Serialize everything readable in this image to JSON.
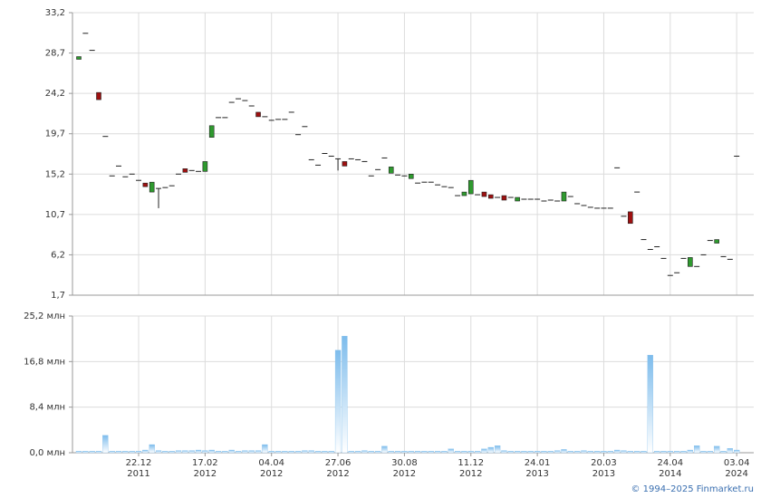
{
  "chart_data": [
    {
      "type": "candlestick",
      "categories": [
        null,
        null,
        null,
        null,
        null,
        null,
        null,
        null,
        null,
        "22.12\n2011",
        null,
        null,
        null,
        null,
        null,
        null,
        null,
        null,
        null,
        "17.02\n2012",
        null,
        null,
        null,
        null,
        null,
        null,
        null,
        null,
        null,
        "04.04\n2012",
        null,
        null,
        null,
        null,
        null,
        null,
        null,
        null,
        null,
        "27.06\n2012",
        null,
        null,
        null,
        null,
        null,
        null,
        null,
        null,
        null,
        "30.08\n2012",
        null,
        null,
        null,
        null,
        null,
        null,
        null,
        null,
        null,
        "11.12\n2012",
        null,
        null,
        null,
        null,
        null,
        null,
        null,
        null,
        null,
        "24.01\n2013",
        null,
        null,
        null,
        null,
        null,
        null,
        null,
        null,
        null,
        "20.03\n2013",
        null,
        null,
        null,
        null,
        null,
        null,
        null,
        null,
        null,
        "24.04\n2014",
        null,
        null,
        null,
        null,
        null,
        null,
        null,
        null,
        null,
        "03.04\n2024"
      ],
      "open": [
        28.0,
        30.9,
        29.0,
        24.3,
        19.4,
        15.0,
        16.1,
        14.9,
        15.2,
        14.5,
        14.2,
        13.2,
        13.6,
        13.7,
        13.9,
        15.2,
        15.8,
        15.6,
        15.5,
        15.5,
        19.3,
        21.5,
        21.5,
        23.2,
        23.6,
        23.4,
        22.8,
        22.1,
        21.6,
        21.2,
        21.3,
        21.3,
        22.1,
        19.6,
        20.5,
        16.8,
        16.2,
        17.5,
        17.2,
        16.9,
        16.6,
        16.9,
        16.8,
        16.6,
        15.0,
        15.7,
        17.0,
        15.3,
        15.1,
        15.0,
        14.7,
        14.2,
        14.3,
        14.3,
        14.0,
        13.8,
        13.7,
        12.8,
        12.8,
        13.0,
        12.9,
        13.2,
        12.9,
        12.6,
        12.8,
        12.6,
        12.2,
        12.4,
        12.4,
        12.4,
        12.2,
        12.3,
        12.2,
        12.2,
        12.7,
        11.9,
        11.7,
        11.5,
        11.4,
        11.4,
        11.4,
        15.9,
        10.5,
        11.0,
        13.2,
        7.9,
        6.8,
        7.1,
        5.8,
        3.9,
        4.2,
        5.8,
        4.9,
        4.9,
        6.2,
        7.8,
        7.5,
        6.0,
        5.7,
        17.2
      ],
      "high": [
        28.3,
        30.9,
        29.0,
        24.3,
        19.4,
        15.0,
        16.1,
        14.9,
        15.2,
        14.5,
        14.2,
        14.3,
        13.6,
        13.7,
        13.9,
        15.2,
        15.8,
        15.6,
        15.5,
        16.6,
        20.6,
        21.5,
        21.5,
        23.2,
        23.6,
        23.4,
        22.8,
        22.1,
        21.6,
        21.2,
        21.3,
        21.3,
        22.1,
        19.6,
        20.5,
        16.8,
        16.2,
        17.5,
        17.2,
        16.9,
        16.6,
        16.9,
        16.8,
        16.6,
        15.0,
        15.7,
        17.0,
        16.0,
        15.1,
        15.0,
        15.2,
        14.2,
        14.3,
        14.3,
        14.0,
        13.8,
        13.7,
        12.8,
        13.2,
        14.5,
        12.9,
        13.2,
        12.9,
        12.6,
        12.8,
        12.6,
        12.6,
        12.4,
        12.4,
        12.4,
        12.2,
        12.3,
        12.2,
        13.2,
        12.7,
        11.9,
        11.7,
        11.5,
        11.4,
        11.4,
        11.4,
        15.9,
        10.5,
        11.0,
        13.2,
        7.9,
        6.8,
        7.1,
        5.8,
        3.9,
        4.2,
        5.8,
        5.9,
        4.9,
        6.2,
        7.8,
        7.9,
        6.0,
        5.7,
        17.2
      ],
      "low": [
        28.0,
        30.9,
        29.0,
        23.5,
        19.4,
        15.0,
        16.1,
        14.9,
        15.2,
        14.5,
        13.8,
        13.2,
        11.4,
        13.7,
        13.9,
        15.2,
        15.4,
        15.6,
        15.5,
        15.5,
        19.3,
        21.5,
        21.5,
        23.2,
        23.6,
        23.4,
        22.8,
        21.6,
        21.6,
        21.2,
        21.3,
        21.3,
        22.1,
        19.6,
        20.5,
        16.8,
        16.2,
        17.5,
        17.2,
        15.6,
        16.1,
        16.9,
        16.8,
        16.6,
        15.0,
        15.7,
        17.0,
        15.3,
        15.1,
        15.0,
        14.7,
        14.2,
        14.3,
        14.3,
        14.0,
        13.8,
        13.7,
        12.8,
        12.8,
        13.0,
        12.9,
        12.7,
        12.5,
        12.6,
        12.3,
        12.6,
        12.2,
        12.4,
        12.4,
        12.4,
        12.2,
        12.3,
        12.2,
        12.2,
        12.7,
        11.9,
        11.7,
        11.5,
        11.4,
        11.4,
        11.4,
        15.9,
        10.5,
        9.7,
        13.2,
        7.9,
        6.8,
        7.1,
        5.8,
        3.9,
        4.2,
        5.8,
        4.9,
        4.9,
        6.2,
        7.8,
        7.5,
        6.0,
        5.7,
        17.2
      ],
      "close": [
        28.3,
        30.9,
        29.0,
        23.5,
        19.4,
        15.0,
        16.1,
        14.9,
        15.2,
        14.5,
        13.8,
        14.3,
        13.6,
        13.7,
        13.9,
        15.2,
        15.4,
        15.6,
        15.5,
        16.6,
        20.6,
        21.5,
        21.5,
        23.2,
        23.6,
        23.4,
        22.8,
        21.6,
        21.6,
        21.2,
        21.3,
        21.3,
        22.1,
        19.6,
        20.5,
        16.8,
        16.2,
        17.5,
        17.2,
        16.9,
        16.1,
        16.9,
        16.8,
        16.6,
        15.0,
        15.7,
        17.0,
        16.0,
        15.1,
        15.0,
        15.2,
        14.2,
        14.3,
        14.3,
        14.0,
        13.8,
        13.7,
        12.8,
        13.2,
        14.5,
        12.9,
        12.7,
        12.5,
        12.6,
        12.3,
        12.6,
        12.6,
        12.4,
        12.4,
        12.4,
        12.2,
        12.3,
        12.2,
        13.2,
        12.7,
        11.9,
        11.7,
        11.5,
        11.4,
        11.4,
        11.4,
        15.9,
        10.5,
        9.7,
        13.2,
        7.9,
        6.8,
        7.1,
        5.8,
        3.9,
        4.2,
        5.8,
        5.9,
        4.9,
        6.2,
        7.8,
        7.9,
        6.0,
        5.7,
        17.2
      ],
      "up_color": "#2f9a2f",
      "down_color": "#9e1010",
      "ylim": [
        1.7,
        33.2
      ],
      "yticks": [
        {
          "value": 1.7,
          "label": "1,7"
        },
        {
          "value": 6.2,
          "label": "6,2"
        },
        {
          "value": 10.7,
          "label": "10,7"
        },
        {
          "value": 15.2,
          "label": "15,2"
        },
        {
          "value": 19.7,
          "label": "19,7"
        },
        {
          "value": 24.2,
          "label": "24,2"
        },
        {
          "value": 28.7,
          "label": "28,7"
        },
        {
          "value": 33.2,
          "label": "33,2"
        }
      ],
      "grid": true
    },
    {
      "type": "bar",
      "values": [
        0.3,
        0.3,
        0.3,
        0.3,
        3.2,
        0.3,
        0.3,
        0.3,
        0.3,
        0.3,
        0.5,
        1.5,
        0.4,
        0.3,
        0.3,
        0.4,
        0.4,
        0.4,
        0.5,
        0.4,
        0.5,
        0.3,
        0.3,
        0.5,
        0.3,
        0.4,
        0.4,
        0.4,
        1.5,
        0.3,
        0.3,
        0.3,
        0.3,
        0.3,
        0.4,
        0.4,
        0.3,
        0.3,
        0.3,
        18.9,
        21.5,
        0.3,
        0.3,
        0.4,
        0.3,
        0.3,
        1.2,
        0.3,
        0.3,
        0.3,
        0.3,
        0.3,
        0.3,
        0.3,
        0.3,
        0.3,
        0.7,
        0.3,
        0.3,
        0.3,
        0.3,
        0.7,
        1.0,
        1.3,
        0.4,
        0.3,
        0.3,
        0.3,
        0.3,
        0.3,
        0.3,
        0.3,
        0.4,
        0.6,
        0.3,
        0.3,
        0.4,
        0.3,
        0.3,
        0.3,
        0.3,
        0.5,
        0.4,
        0.3,
        0.3,
        0.3,
        18.0,
        0.3,
        0.3,
        0.3,
        0.3,
        0.3,
        0.5,
        1.3,
        0.3,
        0.3,
        1.2,
        0.3,
        0.8,
        0.5
      ],
      "color": "#7dbcec",
      "ylim": [
        0,
        25.2
      ],
      "yticks": [
        {
          "value": 0,
          "label": "0,0 млн"
        },
        {
          "value": 8.4,
          "label": "8,4 млн"
        },
        {
          "value": 16.8,
          "label": "16,8 млн"
        },
        {
          "value": 25.2,
          "label": "25,2 млн"
        }
      ],
      "grid": true
    }
  ],
  "copyright": "© 1994–2025 Finmarket.ru"
}
